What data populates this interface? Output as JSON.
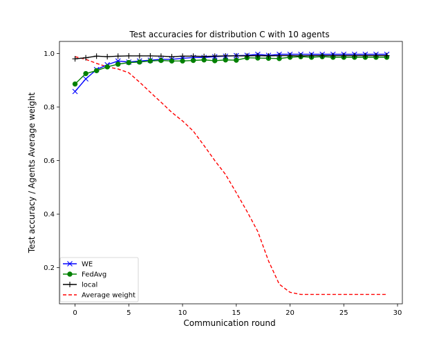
{
  "chart_data": {
    "type": "line",
    "title": "Test accuracies for distribution C with 10 agents",
    "xlabel": "Communication round",
    "ylabel": "Test accuracy / Agents Average weight",
    "xlim": [
      -1.45,
      30.45
    ],
    "ylim": [
      0.065,
      1.045
    ],
    "xticks": [
      0,
      5,
      10,
      15,
      20,
      25,
      30
    ],
    "yticks": [
      0.2,
      0.4,
      0.6,
      0.8,
      1.0
    ],
    "grid": false,
    "legend_position": "lower-left",
    "x": [
      0,
      1,
      2,
      3,
      4,
      5,
      6,
      7,
      8,
      9,
      10,
      11,
      12,
      13,
      14,
      15,
      16,
      17,
      18,
      19,
      20,
      21,
      22,
      23,
      24,
      25,
      26,
      27,
      28,
      29
    ],
    "series": [
      {
        "name": "WE",
        "color": "#0000ff",
        "marker": "x",
        "linestyle": "solid",
        "values": [
          0.858,
          0.905,
          0.94,
          0.958,
          0.972,
          0.968,
          0.972,
          0.975,
          0.978,
          0.978,
          0.982,
          0.985,
          0.985,
          0.988,
          0.99,
          0.992,
          0.993,
          0.997,
          0.993,
          0.997,
          0.997,
          0.997,
          0.997,
          0.997,
          0.997,
          0.997,
          0.997,
          0.997,
          0.997,
          0.997
        ]
      },
      {
        "name": "FedAvg",
        "color": "#008000",
        "marker": "o",
        "linestyle": "solid",
        "values": [
          0.886,
          0.925,
          0.936,
          0.95,
          0.96,
          0.966,
          0.968,
          0.972,
          0.974,
          0.972,
          0.972,
          0.974,
          0.976,
          0.973,
          0.976,
          0.975,
          0.984,
          0.983,
          0.982,
          0.981,
          0.986,
          0.988,
          0.986,
          0.988,
          0.986,
          0.986,
          0.986,
          0.986,
          0.986,
          0.986
        ]
      },
      {
        "name": "local",
        "color": "#000000",
        "marker": "+",
        "linestyle": "solid",
        "values": [
          0.98,
          0.984,
          0.99,
          0.988,
          0.99,
          0.991,
          0.991,
          0.991,
          0.99,
          0.988,
          0.99,
          0.99,
          0.989,
          0.99,
          0.991,
          0.991,
          0.991,
          0.992,
          0.991,
          0.992,
          0.992,
          0.991,
          0.992,
          0.992,
          0.992,
          0.992,
          0.992,
          0.992,
          0.992,
          0.992
        ]
      },
      {
        "name": "Average weight",
        "color": "#ff0000",
        "marker": "none",
        "linestyle": "dashed",
        "values": [
          0.988,
          0.978,
          0.963,
          0.95,
          0.942,
          0.928,
          0.893,
          0.855,
          0.818,
          0.78,
          0.748,
          0.71,
          0.656,
          0.6,
          0.548,
          0.48,
          0.41,
          0.335,
          0.225,
          0.138,
          0.108,
          0.1,
          0.1,
          0.1,
          0.1,
          0.1,
          0.1,
          0.1,
          0.1,
          0.1
        ]
      }
    ]
  }
}
